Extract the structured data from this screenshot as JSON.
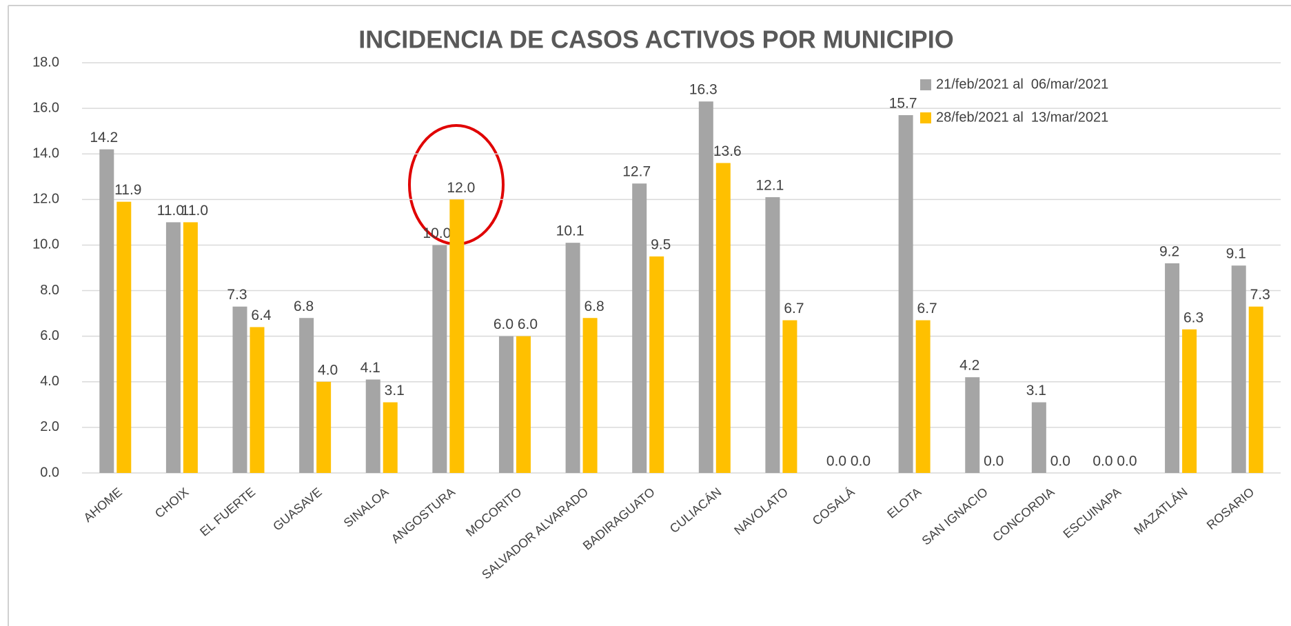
{
  "chart_data": {
    "type": "bar",
    "title": "INCIDENCIA DE CASOS ACTIVOS POR MUNICIPIO",
    "categories": [
      "AHOME",
      "CHOIX",
      "EL FUERTE",
      "GUASAVE",
      "SINALOA",
      "ANGOSTURA",
      "MOCORITO",
      "SALVADOR ALVARADO",
      "BADIRAGUATO",
      "CULIACÁN",
      "NAVOLATO",
      "COSALÁ",
      "ELOTA",
      "SAN IGNACIO",
      "CONCORDIA",
      "ESCUINAPA",
      "MAZATLÁN",
      "ROSARIO"
    ],
    "series": [
      {
        "name": "21/feb/2021 al  06/mar/2021",
        "color": "#a5a5a5",
        "values": [
          14.2,
          11.0,
          7.3,
          6.8,
          4.1,
          10.0,
          6.0,
          10.1,
          12.7,
          16.3,
          12.1,
          0.0,
          15.7,
          4.2,
          3.1,
          0.0,
          9.2,
          9.1
        ],
        "value_labels": [
          "14.2",
          "11.0",
          "7.3",
          "6.8",
          "4.1",
          "10.0",
          "6.0",
          "10.1",
          "12.7",
          "16.3",
          "12.1",
          "0.0",
          "15.7",
          "4.2",
          "3.1",
          "0.0",
          "9.2",
          "9.1"
        ]
      },
      {
        "name": "28/feb/2021 al  13/mar/2021",
        "color": "#ffc000",
        "values": [
          11.9,
          11.0,
          6.4,
          4.0,
          3.1,
          12.0,
          6.0,
          6.8,
          9.5,
          13.6,
          6.7,
          0.0,
          6.7,
          0.0,
          0.0,
          0.0,
          6.3,
          7.3
        ],
        "value_labels": [
          "11.9",
          "11.0",
          "6.4",
          "4.0",
          "3.1",
          "12.0",
          "6.0",
          "6.8",
          "9.5",
          "13.6",
          "6.7",
          "0.0",
          "6.7",
          "0.0",
          "0.0",
          "0.0",
          "6.3",
          "7.3"
        ]
      }
    ],
    "ylim": [
      0,
      18
    ],
    "yticks": [
      {
        "value": 0,
        "label": "0.0"
      },
      {
        "value": 2,
        "label": "2.0"
      },
      {
        "value": 4,
        "label": "4.0"
      },
      {
        "value": 6,
        "label": "6.0"
      },
      {
        "value": 8,
        "label": "8.0"
      },
      {
        "value": 10,
        "label": "10.0"
      },
      {
        "value": 12,
        "label": "12.0"
      },
      {
        "value": 14,
        "label": "14.0"
      },
      {
        "value": 16,
        "label": "16.0"
      },
      {
        "value": 18,
        "label": "18.0"
      }
    ],
    "grid": true,
    "legend": "upper right"
  }
}
